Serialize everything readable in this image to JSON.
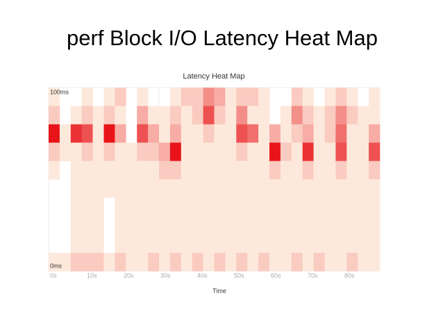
{
  "slide_title": "perf Block I/O Latency Heat Map",
  "chart_data": {
    "type": "heatmap",
    "title": "Latency Heat Map",
    "x_label": "Time",
    "x": [
      0,
      3,
      6,
      9,
      12,
      15,
      18,
      21,
      24,
      27,
      30,
      33,
      36,
      39,
      42,
      45,
      48,
      51,
      54,
      57,
      60,
      63,
      66,
      69,
      72,
      75,
      78,
      81,
      84,
      87
    ],
    "y": [
      90,
      80,
      70,
      60,
      50,
      40,
      30,
      20,
      10,
      0
    ],
    "values": [
      [
        1,
        2,
        8,
        2,
        1,
        0,
        0,
        0,
        0,
        1
      ],
      [
        0,
        0,
        1,
        1,
        0,
        0,
        0,
        0,
        0,
        1
      ],
      [
        0,
        1,
        7,
        1,
        1,
        1,
        1,
        1,
        1,
        2
      ],
      [
        1,
        2,
        6,
        2,
        1,
        1,
        1,
        1,
        1,
        2
      ],
      [
        0,
        1,
        1,
        1,
        1,
        1,
        1,
        1,
        1,
        2
      ],
      [
        1,
        2,
        8,
        2,
        1,
        1,
        0,
        0,
        0,
        1
      ],
      [
        2,
        1,
        3,
        1,
        1,
        1,
        1,
        1,
        1,
        2
      ],
      [
        0,
        0,
        0,
        1,
        1,
        1,
        1,
        1,
        1,
        1
      ],
      [
        1,
        3,
        6,
        2,
        1,
        1,
        1,
        1,
        1,
        1
      ],
      [
        0,
        1,
        3,
        2,
        1,
        1,
        1,
        1,
        1,
        2
      ],
      [
        0,
        1,
        1,
        3,
        2,
        1,
        1,
        1,
        1,
        1
      ],
      [
        1,
        2,
        3,
        8,
        2,
        1,
        1,
        1,
        1,
        2
      ],
      [
        2,
        1,
        1,
        1,
        1,
        1,
        1,
        1,
        1,
        1
      ],
      [
        2,
        2,
        1,
        1,
        1,
        1,
        1,
        1,
        1,
        2
      ],
      [
        4,
        6,
        2,
        1,
        1,
        1,
        1,
        1,
        1,
        1
      ],
      [
        3,
        2,
        1,
        1,
        1,
        1,
        1,
        1,
        1,
        2
      ],
      [
        1,
        1,
        1,
        1,
        1,
        1,
        1,
        1,
        1,
        1
      ],
      [
        2,
        4,
        6,
        2,
        1,
        1,
        1,
        1,
        1,
        2
      ],
      [
        2,
        1,
        5,
        1,
        1,
        1,
        1,
        1,
        1,
        1
      ],
      [
        1,
        1,
        1,
        1,
        1,
        1,
        1,
        1,
        1,
        2
      ],
      [
        0,
        0,
        3,
        8,
        2,
        1,
        1,
        1,
        1,
        1
      ],
      [
        0,
        1,
        1,
        2,
        1,
        1,
        1,
        1,
        1,
        1
      ],
      [
        2,
        4,
        2,
        1,
        1,
        1,
        1,
        1,
        1,
        2
      ],
      [
        1,
        2,
        3,
        7,
        2,
        1,
        1,
        1,
        1,
        1
      ],
      [
        0,
        1,
        1,
        1,
        1,
        1,
        1,
        1,
        1,
        2
      ],
      [
        1,
        2,
        2,
        1,
        1,
        1,
        1,
        1,
        1,
        1
      ],
      [
        2,
        4,
        5,
        6,
        2,
        1,
        1,
        1,
        1,
        1
      ],
      [
        1,
        2,
        1,
        1,
        1,
        1,
        1,
        1,
        1,
        2
      ],
      [
        0,
        1,
        1,
        1,
        1,
        1,
        1,
        1,
        1,
        1
      ],
      [
        1,
        1,
        3,
        6,
        2,
        1,
        1,
        1,
        1,
        1
      ]
    ],
    "colors": [
      "#fde9dc",
      "#e8141a"
    ],
    "xlim": [
      0,
      90
    ],
    "ylim": [
      0,
      100
    ],
    "xticks": [
      {
        "value": 0,
        "label": "0s"
      },
      {
        "value": 10,
        "label": "10s"
      },
      {
        "value": 20,
        "label": "20s"
      },
      {
        "value": 30,
        "label": "30s"
      },
      {
        "value": 40,
        "label": "40s"
      },
      {
        "value": 50,
        "label": "50s"
      },
      {
        "value": 60,
        "label": "60s"
      },
      {
        "value": 70,
        "label": "70s"
      },
      {
        "value": 80,
        "label": "80s"
      }
    ],
    "yticks": [
      {
        "value": 0,
        "label": "0ms"
      },
      {
        "value": 100,
        "label": "100ms"
      }
    ],
    "grid": true
  }
}
